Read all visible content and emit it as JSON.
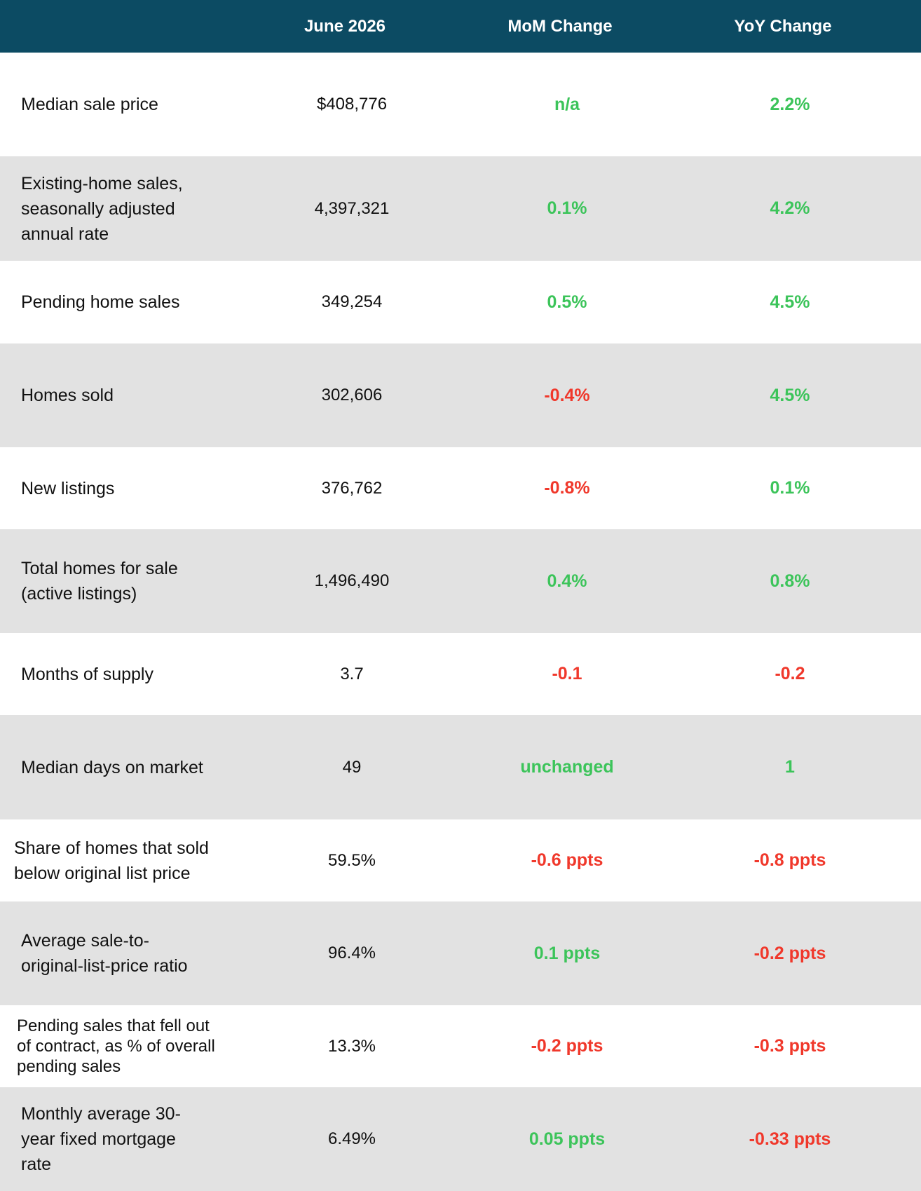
{
  "header": {
    "col_metric": "",
    "col_value": "June 2026",
    "col_mom": "MoM Change",
    "col_yoy": "YoY Change"
  },
  "colors": {
    "header_bg": "#0c4b63",
    "alt_row_bg": "#e2e2e2",
    "positive": "#3cc45a",
    "negative": "#f0382b"
  },
  "rows": [
    {
      "label_lines": [
        "Median sale price"
      ],
      "value": "$408,776",
      "mom": "n/a",
      "mom_tone": "positive",
      "yoy": "2.2%",
      "yoy_tone": "positive"
    },
    {
      "label_lines": [
        "Existing-home sales,",
        "seasonally adjusted",
        "annual rate"
      ],
      "value": "4,397,321",
      "mom": "0.1%",
      "mom_tone": "positive",
      "yoy": "4.2%",
      "yoy_tone": "positive"
    },
    {
      "label_lines": [
        "Pending home sales"
      ],
      "value": "349,254",
      "mom": "0.5%",
      "mom_tone": "positive",
      "yoy": "4.5%",
      "yoy_tone": "positive"
    },
    {
      "label_lines": [
        "Homes sold"
      ],
      "value": "302,606",
      "mom": "-0.4%",
      "mom_tone": "negative",
      "yoy": "4.5%",
      "yoy_tone": "positive"
    },
    {
      "label_lines": [
        "New listings"
      ],
      "value": "376,762",
      "mom": "-0.8%",
      "mom_tone": "negative",
      "yoy": "0.1%",
      "yoy_tone": "positive"
    },
    {
      "label_lines": [
        "Total homes for sale",
        "(active listings)"
      ],
      "value": "1,496,490",
      "mom": "0.4%",
      "mom_tone": "positive",
      "yoy": "0.8%",
      "yoy_tone": "positive"
    },
    {
      "label_lines": [
        "Months of supply"
      ],
      "value": "3.7",
      "mom": "-0.1",
      "mom_tone": "negative",
      "yoy": "-0.2",
      "yoy_tone": "negative"
    },
    {
      "label_lines": [
        "Median days on market"
      ],
      "value": "49",
      "mom": "unchanged",
      "mom_tone": "positive",
      "yoy": "1",
      "yoy_tone": "positive"
    },
    {
      "label_lines": [
        "Share of homes that sold",
        "below original list price"
      ],
      "value": "59.5%",
      "mom": "-0.6 ppts",
      "mom_tone": "negative",
      "yoy": "-0.8 ppts",
      "yoy_tone": "negative"
    },
    {
      "label_lines": [
        "Average sale-to-",
        "original-list-price ratio"
      ],
      "value": "96.4%",
      "mom": "0.1 ppts",
      "mom_tone": "positive",
      "yoy": "-0.2 ppts",
      "yoy_tone": "negative"
    },
    {
      "label_lines": [
        "Pending sales that fell out",
        "of contract, as % of overall",
        "pending sales"
      ],
      "value": "13.3%",
      "mom": "-0.2 ppts",
      "mom_tone": "negative",
      "yoy": "-0.3 ppts",
      "yoy_tone": "negative"
    },
    {
      "label_lines": [
        "Monthly average 30-",
        "year fixed mortgage",
        "rate"
      ],
      "value": "6.49%",
      "mom": "0.05 ppts",
      "mom_tone": "positive",
      "yoy": "-0.33 ppts",
      "yoy_tone": "negative"
    }
  ]
}
